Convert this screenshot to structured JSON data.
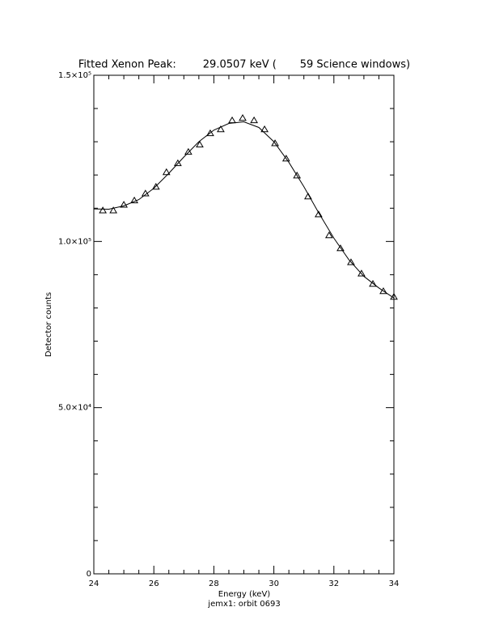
{
  "chart_data": {
    "type": "scatter",
    "title": "Fitted Xenon Peak:        29.0507 keV (       59 Science windows)",
    "x_label": "Energy (keV)",
    "y_label": "Detector counts",
    "subtitle": "jemx1: orbit 0693",
    "color": "#000000",
    "x": [
      24.3,
      24.65,
      25.0,
      25.35,
      25.72,
      26.07,
      26.42,
      26.8,
      27.15,
      27.53,
      27.88,
      28.23,
      28.61,
      28.96,
      29.34,
      29.69,
      30.04,
      30.41,
      30.77,
      31.14,
      31.49,
      31.84,
      32.22,
      32.57,
      32.92,
      33.3,
      33.65,
      34.0
    ],
    "values": [
      109300,
      109300,
      111000,
      112300,
      114400,
      116400,
      120800,
      123500,
      126900,
      129100,
      132500,
      133700,
      136400,
      137100,
      136400,
      133700,
      129500,
      124900,
      119800,
      113500,
      108100,
      101800,
      97900,
      93700,
      90300,
      87200,
      85000,
      83300
    ],
    "fit_x": [
      24.0,
      24.5,
      25.0,
      25.5,
      26.0,
      26.5,
      27.0,
      27.5,
      28.0,
      28.5,
      29.0,
      29.5,
      30.0,
      30.5,
      31.0,
      31.5,
      32.0,
      32.5,
      33.0,
      33.5,
      34.0
    ],
    "fit_values": [
      109800,
      109700,
      110700,
      112600,
      116000,
      120500,
      125400,
      130000,
      133500,
      135500,
      136000,
      134300,
      130000,
      123800,
      116500,
      108500,
      101000,
      94500,
      89500,
      86000,
      83000
    ],
    "xlim": [
      24,
      34
    ],
    "xticks": [
      24,
      26,
      28,
      30,
      32,
      34
    ],
    "xminorticks": [
      24.5,
      25,
      25.5,
      26.5,
      27,
      27.5,
      28.5,
      29,
      29.5,
      30.5,
      31,
      31.5,
      32.5,
      33,
      33.5
    ],
    "ylim": [
      0,
      150000
    ],
    "yticks": [
      0,
      {
        "value": 50000,
        "label": "5.0×10⁴"
      },
      {
        "value": 100000,
        "label": "1.0×10⁵"
      },
      {
        "value": 150000,
        "label": "1.5×10⁵"
      }
    ],
    "yminorticks": [
      10000,
      20000,
      30000,
      40000,
      60000,
      70000,
      80000,
      90000,
      110000,
      120000,
      130000,
      140000
    ]
  }
}
